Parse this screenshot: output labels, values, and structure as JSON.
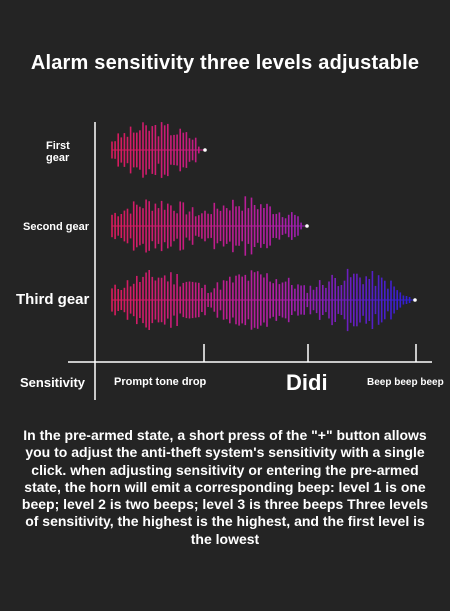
{
  "title": "Alarm sensitivity three levels adjustable",
  "gears": [
    {
      "label": "First\ngear",
      "level": 1
    },
    {
      "label": "Second gear",
      "level": 2
    },
    {
      "label": "Third gear",
      "level": 3
    }
  ],
  "axis": {
    "sensitivity_label": "Sensitivity",
    "tick_labels": [
      "Prompt tone drop",
      "Didi",
      "Beep beep beep"
    ]
  },
  "description": "In the pre-armed state, a short press of the \"+\" button allows you to adjust the anti-theft system's sensitivity with a single click. when adjusting sensitivity or entering the pre-armed state, the horn will emit a corresponding beep: level 1 is one beep; level 2 is two beeps; level 3 is three beeps Three levels of sensitivity, the highest is the highest, and the first level is the lowest",
  "colors": {
    "background": "#242424",
    "wave_start": "#d81b5c",
    "wave_end": "#2a1fd6",
    "axis": "#ffffff"
  }
}
